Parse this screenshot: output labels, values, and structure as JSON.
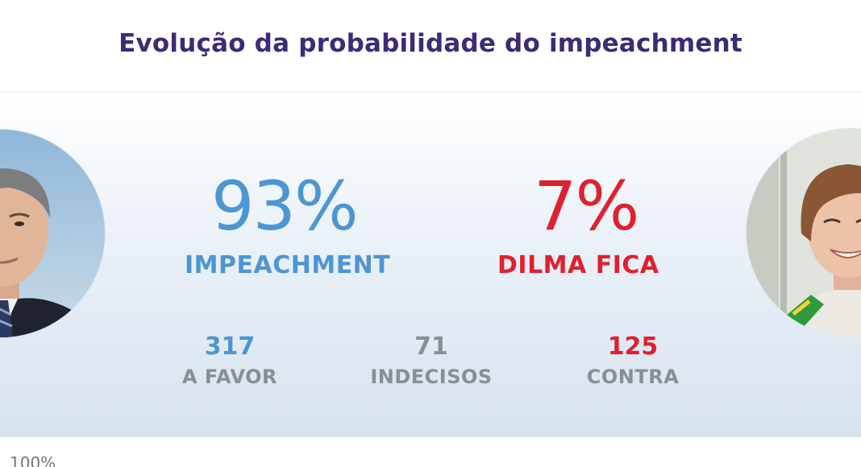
{
  "title": "Evolução da probabilidade do impeachment",
  "impeachment": {
    "percent": "93%",
    "label": "IMPEACHMENT",
    "color": "#4d96d3"
  },
  "dilma_fica": {
    "percent": "7%",
    "label": "DILMA FICA",
    "color": "#e0202f"
  },
  "counts": {
    "a_favor": {
      "value": "317",
      "label": "A FAVOR"
    },
    "indecisos": {
      "value": "71",
      "label": "INDECISOS"
    },
    "contra": {
      "value": "125",
      "label": "CONTRA"
    }
  },
  "chart": {
    "y_top_tick": "100%"
  },
  "colors": {
    "title": "#3d2a78",
    "neutral": "#8b8e91"
  }
}
